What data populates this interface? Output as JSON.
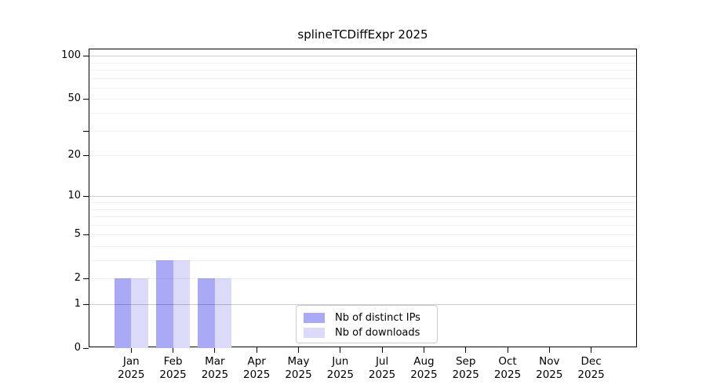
{
  "chart_data": {
    "type": "bar",
    "title": "splineTCDiffExpr 2025",
    "categories": [
      "Jan",
      "Feb",
      "Mar",
      "Apr",
      "May",
      "Jun",
      "Jul",
      "Aug",
      "Sep",
      "Oct",
      "Nov",
      "Dec"
    ],
    "category_year": "2025",
    "series": [
      {
        "name": "Nb of distinct IPs",
        "color": "#a9a9f6",
        "values": [
          2,
          3,
          2,
          0,
          0,
          0,
          0,
          0,
          0,
          0,
          0,
          0
        ]
      },
      {
        "name": "Nb of downloads",
        "color": "#dbdbf9",
        "values": [
          2,
          3,
          2,
          0,
          0,
          0,
          0,
          0,
          0,
          0,
          0,
          0
        ]
      }
    ],
    "xlabel": "",
    "ylabel": "",
    "y_axis": {
      "scale": "log10(1+value)",
      "top_value": 115,
      "ticks": [
        {
          "value": 0,
          "label": "0"
        },
        {
          "value": 1,
          "label": "1"
        },
        {
          "value": 2,
          "label": "2"
        },
        {
          "value": 5,
          "label": "5"
        },
        {
          "value": 10,
          "label": "10"
        },
        {
          "value": 20,
          "label": "20"
        },
        {
          "value": 30,
          "label": ""
        },
        {
          "value": 50,
          "label": "50"
        },
        {
          "value": 100,
          "label": "100"
        }
      ]
    },
    "gridlines": {
      "major": [
        1,
        10,
        100
      ],
      "minor": [
        2,
        3,
        4,
        5,
        6,
        7,
        8,
        9,
        20,
        30,
        40,
        50,
        60,
        70,
        80,
        90
      ]
    },
    "legend": {
      "position": "bottom-center-inside",
      "entries": [
        "Nb of distinct IPs",
        "Nb of downloads"
      ]
    },
    "colors": {
      "distinct_ips": "#a9a9f6",
      "downloads": "#dbdbf9",
      "axis": "#000000",
      "grid_major": "#cccccc",
      "grid_minor": "#f0f0f0",
      "legend_border": "#cccccc",
      "background": "#ffffff"
    }
  }
}
